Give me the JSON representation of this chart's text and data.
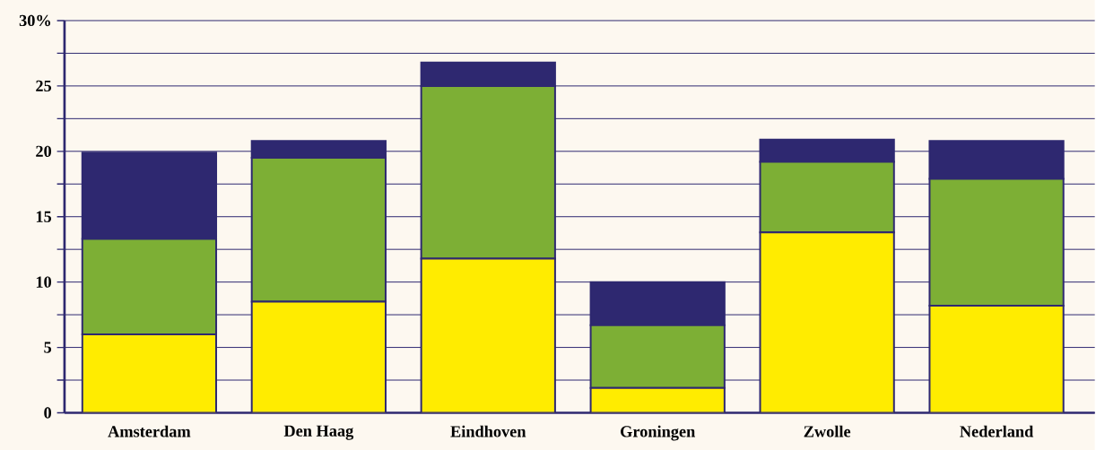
{
  "chart_data": {
    "type": "bar",
    "stacked": true,
    "categories": [
      "Amsterdam",
      "Den Haag",
      "Eindhoven",
      "Groningen",
      "Zwolle",
      "Nederland"
    ],
    "series": [
      {
        "color": "#ffec00",
        "values": [
          6.0,
          8.5,
          11.8,
          1.9,
          13.8,
          8.2
        ]
      },
      {
        "color": "#7daf35",
        "values": [
          7.3,
          11.0,
          13.2,
          4.8,
          5.4,
          9.7
        ]
      },
      {
        "color": "#2e2870",
        "values": [
          6.6,
          1.3,
          1.8,
          3.3,
          1.7,
          2.9
        ]
      }
    ],
    "ylim": [
      0,
      30
    ],
    "yticks": [
      0,
      {
        "value": 2.5,
        "label": null
      },
      5,
      {
        "value": 7.5,
        "label": null
      },
      10,
      {
        "value": 12.5,
        "label": null
      },
      15,
      {
        "value": 17.5,
        "label": null
      },
      20,
      {
        "value": 22.5,
        "label": null
      },
      25,
      {
        "value": 27.5,
        "label": null
      },
      {
        "value": 30,
        "label": "30%"
      }
    ],
    "grid": "y"
  }
}
